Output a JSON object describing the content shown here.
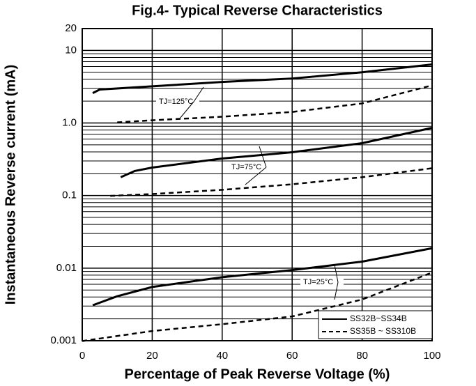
{
  "chart_data": {
    "type": "line",
    "title": "Fig.4- Typical Reverse Characteristics",
    "xlabel": "Percentage of Peak Reverse Voltage (%)",
    "ylabel": "Instantaneous Reverse current (mA)",
    "xlim": [
      0,
      100
    ],
    "xticks": [
      0,
      20,
      40,
      60,
      80,
      100
    ],
    "ylim": [
      0.001,
      20
    ],
    "yscale": "log",
    "yticks": [
      0.001,
      0.01,
      0.1,
      {
        "value": 1,
        "label": "1.0"
      },
      10,
      20
    ],
    "grid": true,
    "legend": "lower right",
    "color": "#000000",
    "annotations": [
      "TJ=125°C",
      "TJ=75°C",
      "TJ=25°C"
    ],
    "series": [
      {
        "name": "SS32B~SS34B",
        "dashed": false,
        "curves": [
          {
            "x": [
              3,
              5,
              20,
              40,
              60,
              80,
              100
            ],
            "values": [
              2.58,
              2.89,
              3.2,
              3.68,
              4.1,
              5.0,
              6.4
            ]
          },
          {
            "x": [
              11,
              15,
              20,
              40,
              60,
              80,
              100
            ],
            "values": [
              0.179,
              0.218,
              0.243,
              0.324,
              0.395,
              0.527,
              0.857
            ]
          },
          {
            "x": [
              3,
              10,
              20,
              40,
              60,
              80,
              100
            ],
            "values": [
              0.00308,
              0.0041,
              0.0055,
              0.0075,
              0.0094,
              0.0123,
              0.0188
            ]
          }
        ]
      },
      {
        "name": "SS35B ~ SS310B",
        "dashed": true,
        "curves": [
          {
            "x": [
              10,
              20,
              40,
              60,
              80,
              100
            ],
            "values": [
              1.02,
              1.09,
              1.22,
              1.42,
              1.86,
              3.3
            ]
          },
          {
            "x": [
              8,
              20,
              40,
              60,
              80,
              100
            ],
            "values": [
              0.099,
              0.105,
              0.12,
              0.143,
              0.179,
              0.238
            ]
          },
          {
            "x": [
              0,
              20,
              40,
              60,
              80,
              100
            ],
            "values": [
              0.00099,
              0.00136,
              0.00169,
              0.00216,
              0.0037,
              0.0087
            ]
          }
        ]
      }
    ]
  }
}
